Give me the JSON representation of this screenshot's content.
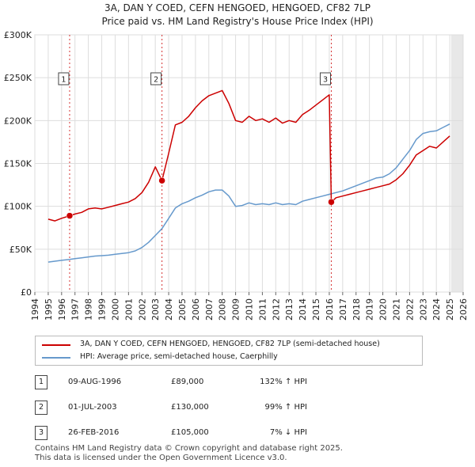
{
  "title_line1": "3A, DAN Y COED, CEFN HENGOED, HENGOED, CF82 7LP",
  "title_line2": "Price paid vs. HM Land Registry's House Price Index (HPI)",
  "colors": {
    "property": "#cc0000",
    "hpi": "#6699cc",
    "grid": "#dddddd",
    "marker": "#cc0000"
  },
  "chart_data": {
    "type": "line",
    "title": "3A, DAN Y COED, CEFN HENGOED, HENGOED, CF82 7LP — Price paid vs. HM Land Registry's House Price Index (HPI)",
    "xlabel": "",
    "ylabel": "",
    "xlim": [
      1994,
      2026
    ],
    "ylim": [
      0,
      300000
    ],
    "grid": true,
    "x_ticks": [
      1994,
      1995,
      1996,
      1997,
      1998,
      1999,
      2000,
      2001,
      2002,
      2003,
      2004,
      2005,
      2006,
      2007,
      2008,
      2009,
      2010,
      2011,
      2012,
      2013,
      2014,
      2015,
      2016,
      2017,
      2018,
      2019,
      2020,
      2021,
      2022,
      2023,
      2024,
      2025,
      2026
    ],
    "y_ticks": [
      0,
      50000,
      100000,
      150000,
      200000,
      250000,
      300000
    ],
    "y_tick_labels": [
      "£0",
      "£50K",
      "£100K",
      "£150K",
      "£200K",
      "£250K",
      "£300K"
    ],
    "data_range_end": 2025.1,
    "series": [
      {
        "name": "3A, DAN Y COED, CEFN HENGOED, HENGOED, CF82 7LP (semi-detached house)",
        "color": "#cc0000",
        "x": [
          1995.0,
          1995.5,
          1996.0,
          1996.6,
          1997.0,
          1997.5,
          1998.0,
          1998.5,
          1999.0,
          1999.5,
          2000.0,
          2000.5,
          2001.0,
          2001.5,
          2002.0,
          2002.5,
          2003.0,
          2003.5,
          2004.0,
          2004.5,
          2005.0,
          2005.5,
          2006.0,
          2006.5,
          2007.0,
          2007.5,
          2008.0,
          2008.5,
          2009.0,
          2009.5,
          2010.0,
          2010.5,
          2011.0,
          2011.5,
          2012.0,
          2012.5,
          2013.0,
          2013.5,
          2014.0,
          2014.5,
          2015.0,
          2015.5,
          2016.0,
          2016.15,
          2016.5,
          2017.0,
          2017.5,
          2018.0,
          2018.5,
          2019.0,
          2019.5,
          2020.0,
          2020.5,
          2021.0,
          2021.5,
          2022.0,
          2022.5,
          2023.0,
          2023.5,
          2024.0,
          2024.5,
          2025.0
        ],
        "y": [
          85000,
          83000,
          86000,
          89000,
          91000,
          93000,
          97000,
          98000,
          97000,
          99000,
          101000,
          103000,
          105000,
          109000,
          116000,
          128000,
          146000,
          130000,
          162000,
          195000,
          198000,
          205000,
          215000,
          223000,
          229000,
          232000,
          235000,
          220000,
          200000,
          198000,
          205000,
          200000,
          202000,
          198000,
          203000,
          197000,
          200000,
          198000,
          207000,
          212000,
          218000,
          224000,
          230000,
          105000,
          110000,
          112000,
          114000,
          116000,
          118000,
          120000,
          122000,
          124000,
          126000,
          131000,
          138000,
          148000,
          160000,
          165000,
          170000,
          168000,
          175000,
          182000
        ]
      },
      {
        "name": "HPI: Average price, semi-detached house, Caerphilly",
        "color": "#6699cc",
        "x": [
          1995.0,
          1995.5,
          1996.0,
          1996.6,
          1997.0,
          1997.5,
          1998.0,
          1998.5,
          1999.0,
          1999.5,
          2000.0,
          2000.5,
          2001.0,
          2001.5,
          2002.0,
          2002.5,
          2003.0,
          2003.5,
          2004.0,
          2004.5,
          2005.0,
          2005.5,
          2006.0,
          2006.5,
          2007.0,
          2007.5,
          2008.0,
          2008.5,
          2009.0,
          2009.5,
          2010.0,
          2010.5,
          2011.0,
          2011.5,
          2012.0,
          2012.5,
          2013.0,
          2013.5,
          2014.0,
          2014.5,
          2015.0,
          2015.5,
          2016.0,
          2016.5,
          2017.0,
          2017.5,
          2018.0,
          2018.5,
          2019.0,
          2019.5,
          2020.0,
          2020.5,
          2021.0,
          2021.5,
          2022.0,
          2022.5,
          2023.0,
          2023.5,
          2024.0,
          2024.5,
          2025.0
        ],
        "y": [
          35000,
          36000,
          37000,
          38000,
          39000,
          40000,
          41000,
          42000,
          42500,
          43000,
          44000,
          45000,
          46000,
          48000,
          52000,
          58000,
          66000,
          74000,
          86000,
          98000,
          103000,
          106000,
          110000,
          113000,
          117000,
          119000,
          119000,
          112000,
          100000,
          101000,
          104000,
          102000,
          103000,
          102000,
          104000,
          102000,
          103000,
          102000,
          106000,
          108000,
          110000,
          112000,
          114000,
          116000,
          118000,
          121000,
          124000,
          127000,
          130000,
          133000,
          134000,
          138000,
          145000,
          155000,
          165000,
          178000,
          185000,
          187000,
          188000,
          192000,
          196000
        ]
      }
    ],
    "sales": [
      {
        "label": "1",
        "x": 1996.6,
        "y": 89000
      },
      {
        "label": "2",
        "x": 2003.5,
        "y": 130000
      },
      {
        "label": "3",
        "x": 2016.15,
        "y": 105000
      }
    ]
  },
  "legend": {
    "property_label": "3A, DAN Y COED, CEFN HENGOED, HENGOED, CF82 7LP (semi-detached house)",
    "hpi_label": "HPI: Average price, semi-detached house, Caerphilly"
  },
  "sales_table": [
    {
      "num": "1",
      "date": "09-AUG-1996",
      "price": "£89,000",
      "hpi": "132% ↑ HPI"
    },
    {
      "num": "2",
      "date": "01-JUL-2003",
      "price": "£130,000",
      "hpi": "99% ↑ HPI"
    },
    {
      "num": "3",
      "date": "26-FEB-2016",
      "price": "£105,000",
      "hpi": "7% ↓ HPI"
    }
  ],
  "footer_line1": "Contains HM Land Registry data © Crown copyright and database right 2025.",
  "footer_line2": "This data is licensed under the Open Government Licence v3.0."
}
